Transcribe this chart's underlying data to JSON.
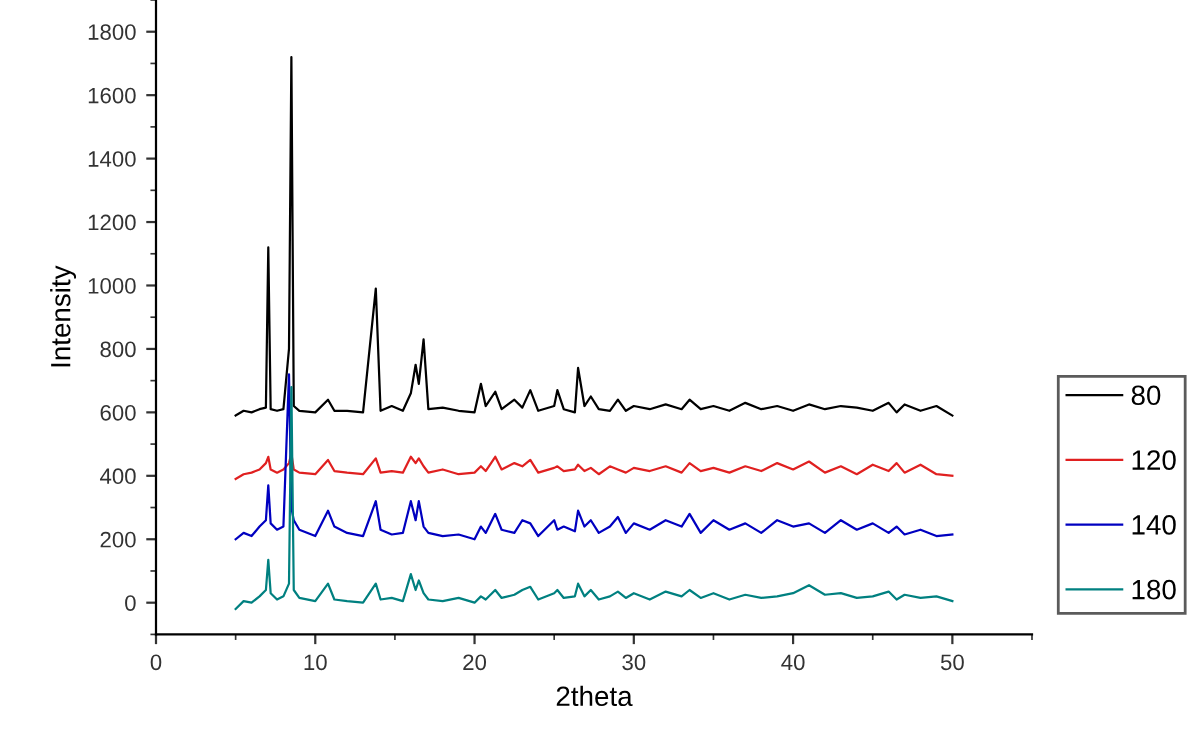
{
  "chart_data": {
    "type": "line",
    "xlabel": "2theta",
    "ylabel": "Intensity",
    "xlim": [
      0,
      55
    ],
    "ylim": [
      -100,
      1900
    ],
    "xticks": [
      0,
      10,
      20,
      30,
      40,
      50
    ],
    "yticks": [
      0,
      200,
      400,
      600,
      800,
      1000,
      1200,
      1400,
      1600,
      1800
    ],
    "grid": false,
    "legend": "right",
    "marker": "none",
    "line_style": "solid",
    "x": [
      5,
      5.5,
      6,
      6.5,
      6.9,
      7.05,
      7.2,
      7.6,
      8.0,
      8.35,
      8.5,
      8.65,
      9,
      10,
      10.8,
      11.2,
      12,
      13,
      13.8,
      14.1,
      14.8,
      15.5,
      16,
      16.3,
      16.5,
      16.8,
      17.1,
      18,
      19,
      20,
      20.4,
      20.7,
      21.3,
      21.7,
      22.5,
      23,
      23.5,
      24,
      25,
      25.2,
      25.6,
      26.3,
      26.5,
      26.9,
      27.3,
      27.8,
      28.5,
      29,
      29.5,
      30,
      31,
      32,
      33,
      33.5,
      34.2,
      35,
      36,
      37,
      38,
      39,
      40,
      41,
      42,
      43,
      44,
      45,
      46,
      46.5,
      47,
      48,
      49,
      50
    ],
    "series": [
      {
        "name": "80",
        "color": "#000000",
        "values": [
          590,
          605,
          600,
          610,
          615,
          1120,
          610,
          605,
          610,
          800,
          1720,
          620,
          605,
          600,
          640,
          605,
          605,
          600,
          990,
          605,
          620,
          605,
          660,
          750,
          690,
          830,
          610,
          615,
          605,
          600,
          690,
          620,
          665,
          610,
          640,
          615,
          670,
          605,
          620,
          670,
          610,
          600,
          740,
          620,
          650,
          610,
          605,
          640,
          605,
          620,
          610,
          625,
          610,
          640,
          610,
          620,
          605,
          630,
          610,
          620,
          605,
          625,
          610,
          620,
          615,
          605,
          630,
          600,
          625,
          605,
          620,
          590
        ]
      },
      {
        "name": "120",
        "color": "#e02020",
        "values": [
          390,
          405,
          410,
          420,
          440,
          460,
          420,
          410,
          420,
          440,
          470,
          420,
          410,
          405,
          450,
          415,
          410,
          405,
          455,
          410,
          415,
          410,
          460,
          440,
          455,
          430,
          410,
          420,
          405,
          410,
          430,
          415,
          460,
          420,
          440,
          430,
          450,
          410,
          425,
          430,
          415,
          420,
          435,
          415,
          425,
          405,
          430,
          420,
          410,
          425,
          415,
          430,
          410,
          440,
          415,
          425,
          410,
          430,
          415,
          440,
          420,
          445,
          410,
          430,
          405,
          435,
          415,
          440,
          410,
          435,
          405,
          400
        ]
      },
      {
        "name": "140",
        "color": "#0000c0",
        "values": [
          200,
          220,
          210,
          240,
          260,
          370,
          250,
          230,
          240,
          720,
          300,
          260,
          230,
          210,
          290,
          240,
          220,
          210,
          320,
          230,
          215,
          220,
          320,
          260,
          320,
          240,
          220,
          210,
          215,
          200,
          240,
          220,
          280,
          230,
          220,
          260,
          250,
          210,
          260,
          230,
          240,
          225,
          290,
          240,
          260,
          220,
          240,
          270,
          220,
          250,
          230,
          260,
          240,
          280,
          220,
          260,
          230,
          250,
          220,
          260,
          240,
          250,
          220,
          260,
          230,
          250,
          220,
          240,
          215,
          230,
          210,
          215
        ]
      },
      {
        "name": "180",
        "color": "#008080",
        "values": [
          -20,
          5,
          0,
          20,
          40,
          135,
          30,
          10,
          20,
          60,
          680,
          40,
          15,
          5,
          60,
          10,
          5,
          0,
          60,
          10,
          15,
          5,
          90,
          40,
          70,
          30,
          10,
          5,
          15,
          0,
          20,
          10,
          40,
          15,
          25,
          40,
          50,
          10,
          30,
          40,
          15,
          20,
          60,
          20,
          40,
          10,
          20,
          35,
          15,
          30,
          10,
          35,
          20,
          40,
          15,
          30,
          10,
          25,
          15,
          20,
          30,
          55,
          25,
          30,
          15,
          20,
          35,
          10,
          25,
          15,
          20,
          5
        ]
      }
    ]
  }
}
